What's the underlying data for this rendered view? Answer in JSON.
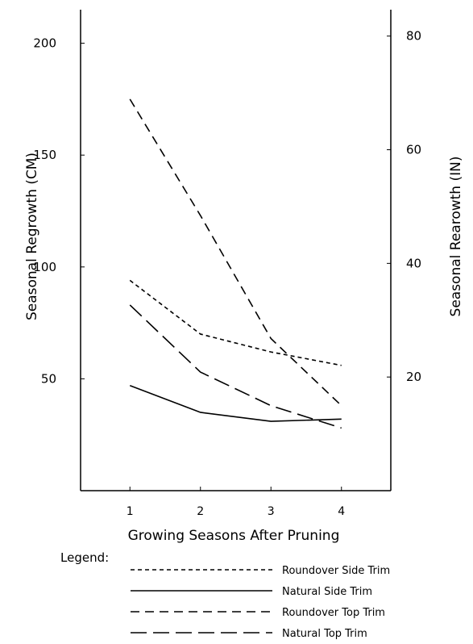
{
  "chart_data": {
    "type": "line",
    "x": [
      1,
      2,
      3,
      4
    ],
    "categories": [
      "1",
      "2",
      "3",
      "4"
    ],
    "xlabel": "Growing Seasons After Pruning",
    "ylabel": "Seasonal Regrowth (CM)",
    "ylabel_right": "Seasonal Rearowth (IN)",
    "xlim": [
      0.3,
      4.7
    ],
    "ylim": [
      0,
      215
    ],
    "y_ticks": [
      50,
      100,
      150,
      200
    ],
    "y_ticks_right": [
      20,
      40,
      60,
      80
    ],
    "right_axis_factor": 0.3937,
    "grid": false,
    "legend_title": "Legend:",
    "legend_position": "bottom",
    "series": [
      {
        "name": "Roundover Side Trim",
        "dash": "dotted",
        "values": [
          94,
          70,
          62,
          56
        ]
      },
      {
        "name": "Natural Side Trim",
        "dash": "solid",
        "values": [
          47,
          35,
          31,
          32
        ]
      },
      {
        "name": "Roundover Top Trim",
        "dash": "dashed",
        "values": [
          175,
          123,
          68,
          38
        ]
      },
      {
        "name": "Natural Top Trim",
        "dash": "dash-long",
        "values": [
          83,
          53,
          38,
          28
        ]
      }
    ]
  }
}
